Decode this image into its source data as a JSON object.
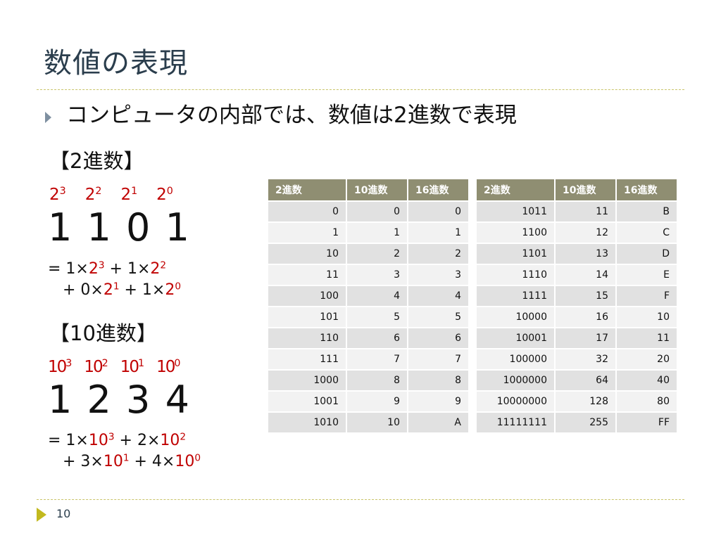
{
  "slide": {
    "title": "数値の表現",
    "bullet": "コンピュータの内部では、数値は2進数で表現",
    "page_number": "10"
  },
  "binary": {
    "heading": "【2進数】",
    "powers": [
      {
        "base": "2",
        "exp": "3"
      },
      {
        "base": "2",
        "exp": "2"
      },
      {
        "base": "2",
        "exp": "1"
      },
      {
        "base": "2",
        "exp": "0"
      }
    ],
    "digits": "1 1 0 1",
    "formula": {
      "line1": [
        {
          "pre": "= 1×",
          "base": "2",
          "exp": "3"
        },
        {
          "pre": " + 1×",
          "base": "2",
          "exp": "2"
        }
      ],
      "line2": [
        {
          "pre": "   + 0×",
          "base": "2",
          "exp": "1"
        },
        {
          "pre": " + 1×",
          "base": "2",
          "exp": "0"
        }
      ]
    }
  },
  "decimal": {
    "heading": "【10進数】",
    "powers": [
      {
        "base": "10",
        "exp": "3"
      },
      {
        "base": "10",
        "exp": "2"
      },
      {
        "base": "10",
        "exp": "1"
      },
      {
        "base": "10",
        "exp": "0"
      }
    ],
    "digits": "1 2 3 4",
    "formula": {
      "line1": [
        {
          "pre": "= 1×",
          "base": "10",
          "exp": "3"
        },
        {
          "pre": " + 2×",
          "base": "10",
          "exp": "2"
        }
      ],
      "line2": [
        {
          "pre": "   + 3×",
          "base": "10",
          "exp": "1"
        },
        {
          "pre": " + 4×",
          "base": "10",
          "exp": "0"
        }
      ]
    }
  },
  "tables": {
    "headers": [
      "2進数",
      "10進数",
      "16進数"
    ],
    "left": [
      [
        "0",
        "0",
        "0"
      ],
      [
        "1",
        "1",
        "1"
      ],
      [
        "10",
        "2",
        "2"
      ],
      [
        "11",
        "3",
        "3"
      ],
      [
        "100",
        "4",
        "4"
      ],
      [
        "101",
        "5",
        "5"
      ],
      [
        "110",
        "6",
        "6"
      ],
      [
        "111",
        "7",
        "7"
      ],
      [
        "1000",
        "8",
        "8"
      ],
      [
        "1001",
        "9",
        "9"
      ],
      [
        "1010",
        "10",
        "A"
      ]
    ],
    "right": [
      [
        "1011",
        "11",
        "B"
      ],
      [
        "1100",
        "12",
        "C"
      ],
      [
        "1101",
        "13",
        "D"
      ],
      [
        "1110",
        "14",
        "E"
      ],
      [
        "1111",
        "15",
        "F"
      ],
      [
        "10000",
        "16",
        "10"
      ],
      [
        "10001",
        "17",
        "11"
      ],
      [
        "100000",
        "32",
        "20"
      ],
      [
        "1000000",
        "64",
        "40"
      ],
      [
        "10000000",
        "128",
        "80"
      ],
      [
        "11111111",
        "255",
        "FF"
      ]
    ]
  },
  "colors": {
    "title": "#2b3e4d",
    "accent_red": "#c00000",
    "table_header": "#8f8e72",
    "rule": "#c9c46a",
    "footer_arrow": "#c2b91e"
  }
}
